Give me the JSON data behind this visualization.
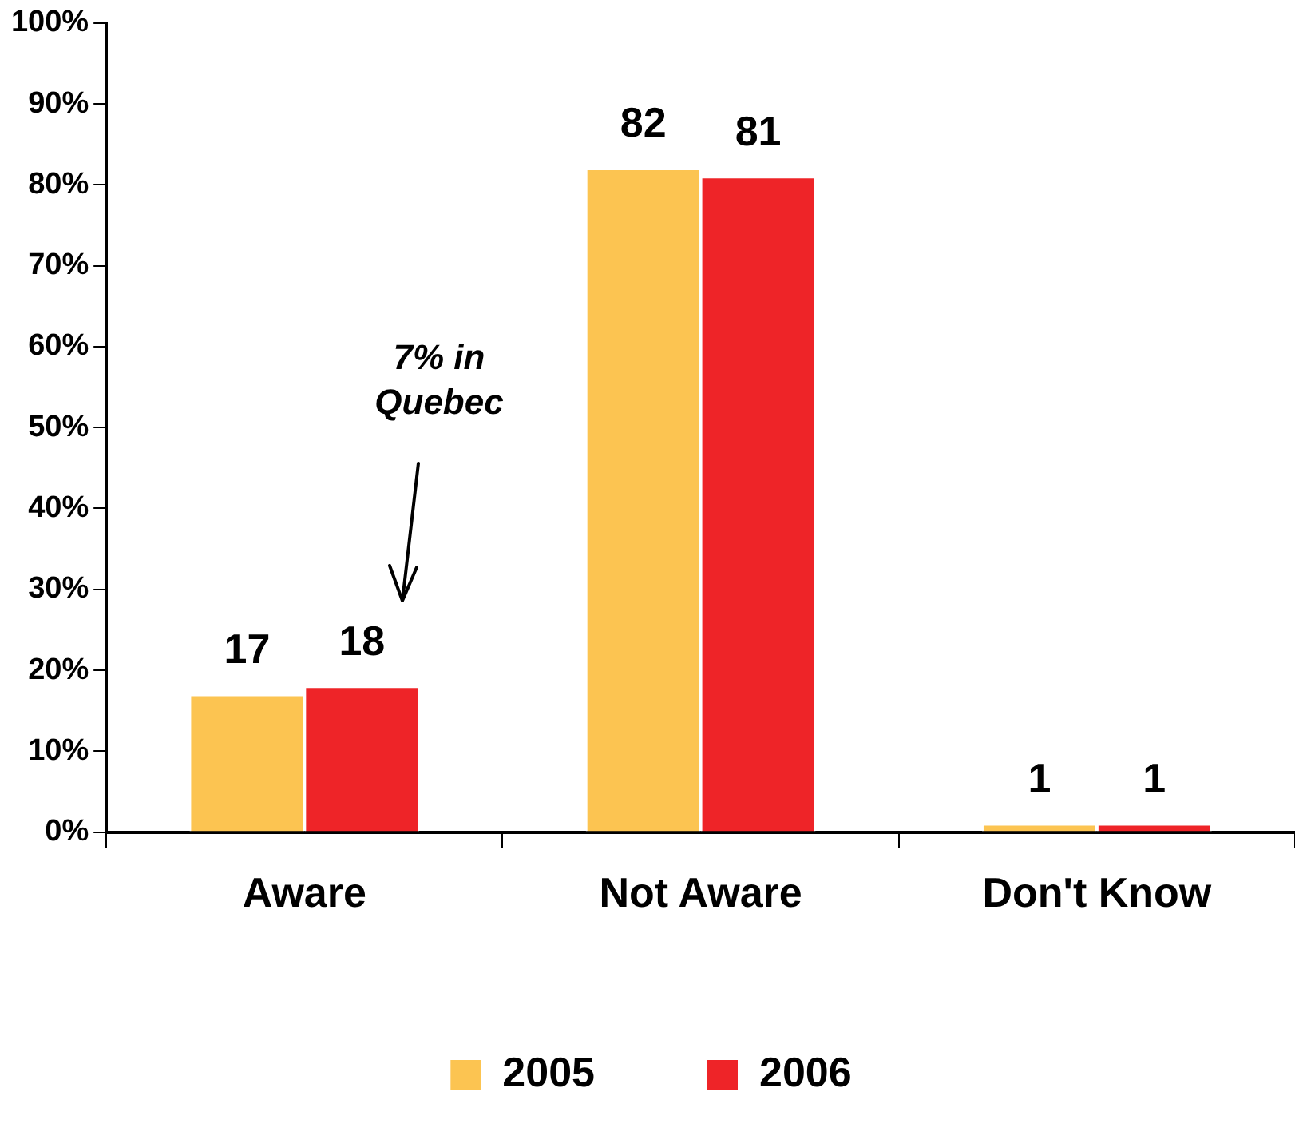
{
  "chart_data": {
    "type": "bar",
    "categories": [
      "Aware",
      "Not Aware",
      "Don't Know"
    ],
    "series": [
      {
        "name": "2005",
        "color": "#fcc451",
        "values": [
          17,
          82,
          1
        ]
      },
      {
        "name": "2006",
        "color": "#ee2428",
        "values": [
          18,
          81,
          1
        ]
      }
    ],
    "ylim": [
      0,
      100
    ],
    "yticks": [
      {
        "value": 0,
        "label": "0%"
      },
      {
        "value": 10,
        "label": "10%"
      },
      {
        "value": 20,
        "label": "20%"
      },
      {
        "value": 30,
        "label": "30%"
      },
      {
        "value": 40,
        "label": "40%"
      },
      {
        "value": 50,
        "label": "50%"
      },
      {
        "value": 60,
        "label": "60%"
      },
      {
        "value": 70,
        "label": "70%"
      },
      {
        "value": 80,
        "label": "80%"
      },
      {
        "value": 90,
        "label": "90%"
      },
      {
        "value": 100,
        "label": "100%"
      }
    ],
    "grid": false,
    "legend": "bottom",
    "data_labels": true,
    "annotations": [
      "7% in Quebec"
    ]
  }
}
